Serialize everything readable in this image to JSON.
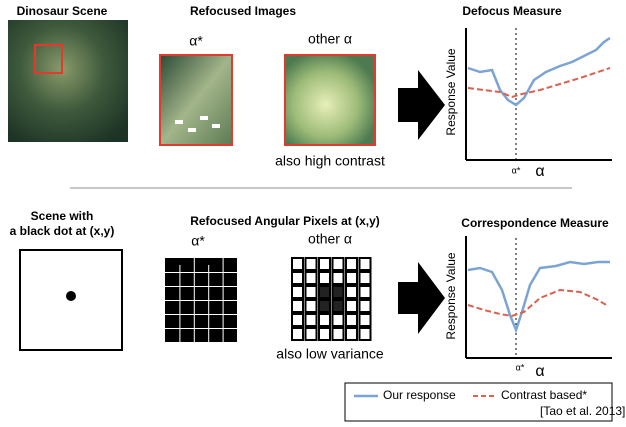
{
  "top": {
    "scene_title": "Dinosaur Scene",
    "refocus_title": "Refocused Images",
    "alpha_star": "α*",
    "other_alpha": "other α",
    "note": "also high contrast",
    "measure_title": "Defocus Measure",
    "y_label": "Response Value",
    "axis_alpha_star": "α*",
    "axis_alpha": "α"
  },
  "bottom": {
    "scene_title_1": "Scene with",
    "scene_title_2": "a black dot at (x,y)",
    "refocus_title": "Refocused Angular Pixels at (x,y)",
    "alpha_star": "α*",
    "other_alpha": "other α",
    "note": "also low variance",
    "measure_title": "Correspondence Measure",
    "y_label": "Response Value",
    "axis_alpha_star": "α*",
    "axis_alpha": "α"
  },
  "legend": {
    "ours": "Our response",
    "contrast": "Contrast based*",
    "citation": "[Tao et al. 2013]"
  }
}
